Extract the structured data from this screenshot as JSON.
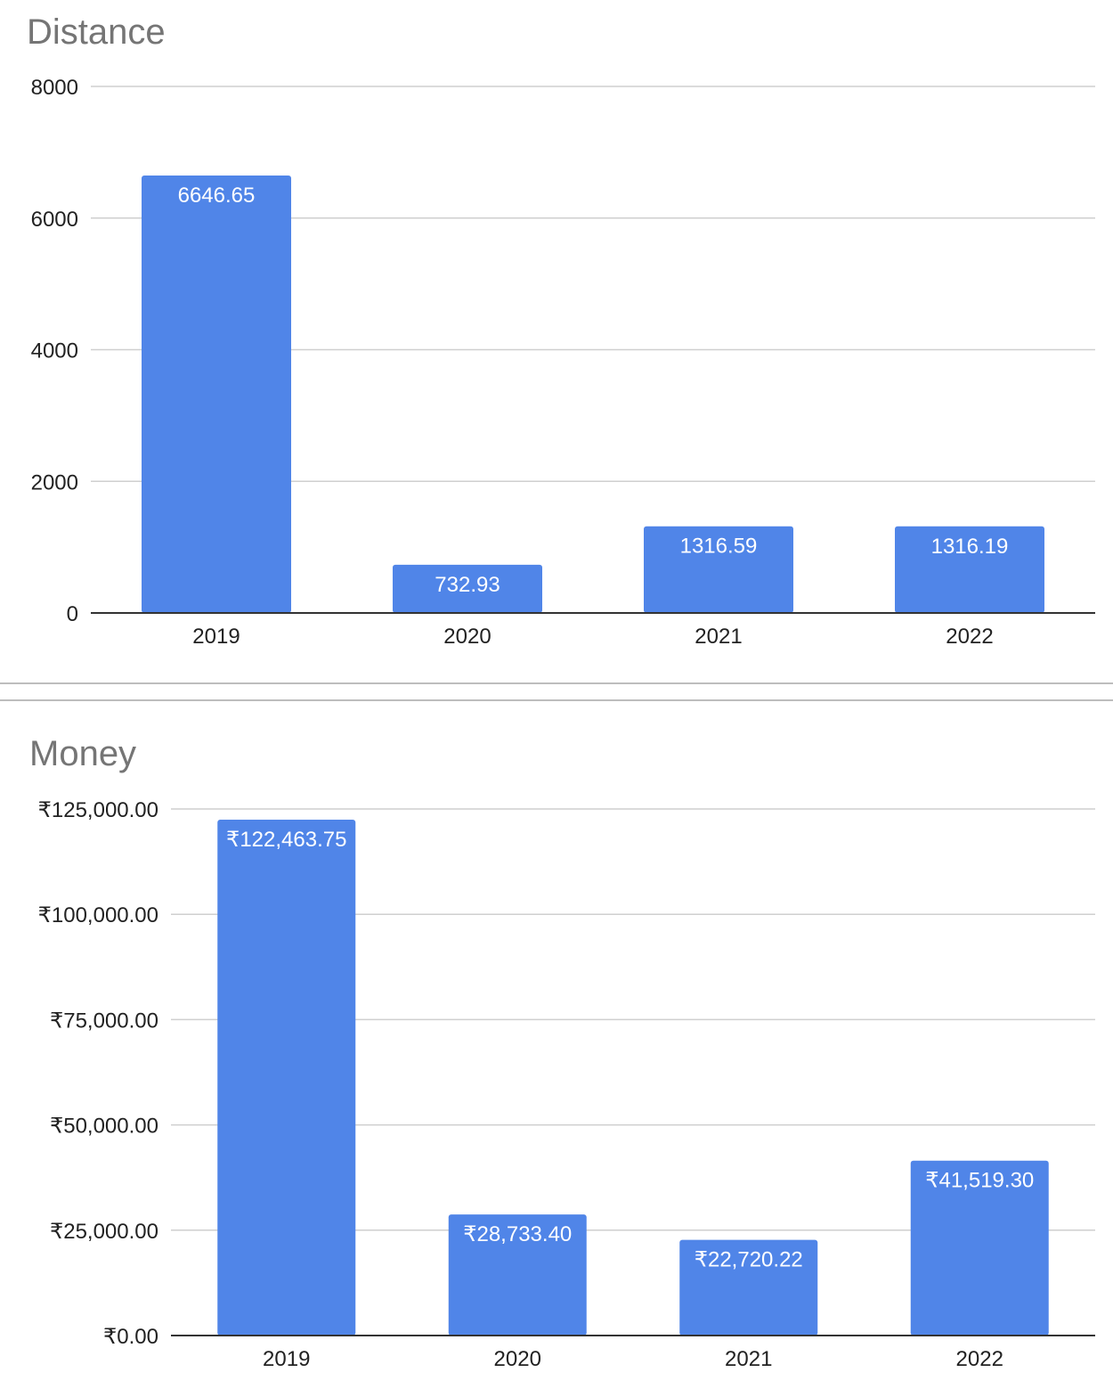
{
  "chart_data": [
    {
      "type": "bar",
      "title": "Distance",
      "categories": [
        "2019",
        "2020",
        "2021",
        "2022"
      ],
      "values": [
        6646.65,
        732.93,
        1316.59,
        1316.19
      ],
      "data_labels": [
        "6646.65",
        "732.93",
        "1316.59",
        "1316.19"
      ],
      "ylim": [
        0,
        8000
      ],
      "yticks": [
        0,
        2000,
        4000,
        6000,
        8000
      ],
      "ytick_labels": [
        "0",
        "2000",
        "4000",
        "6000",
        "8000"
      ],
      "xlabel": "",
      "ylabel": "",
      "grid": true,
      "bar_color": "#5085e8"
    },
    {
      "type": "bar",
      "title": "Money",
      "categories": [
        "2019",
        "2020",
        "2021",
        "2022"
      ],
      "values": [
        122463.75,
        28733.4,
        22720.22,
        41519.3
      ],
      "data_labels": [
        "₹122,463.75",
        "₹28,733.40",
        "₹22,720.22",
        "₹41,519.30"
      ],
      "ylim": [
        0,
        125000
      ],
      "yticks": [
        0,
        25000,
        50000,
        75000,
        100000,
        125000
      ],
      "ytick_labels": [
        "₹0.00",
        "₹25,000.00",
        "₹50,000.00",
        "₹75,000.00",
        "₹100,000.00",
        "₹125,000.00"
      ],
      "xlabel": "",
      "ylabel": "",
      "grid": true,
      "bar_color": "#5085e8"
    }
  ]
}
